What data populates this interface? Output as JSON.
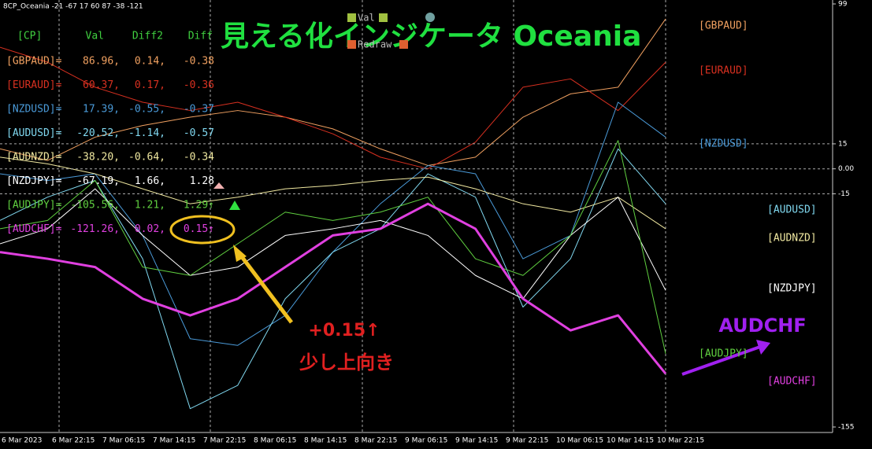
{
  "header": {
    "caption": "8CP_Oceania -21 -67 17 60 87 -38 -121",
    "title": "見える化インジケータ Oceania",
    "button_val": "Val",
    "button_redraw": "Redraw"
  },
  "table": {
    "header": [
      "[CP]",
      "Val",
      "Diff2",
      "Diff"
    ],
    "rows": [
      [
        "[GBPAUD]=",
        "86.96,",
        "0.14,",
        "-0.38"
      ],
      [
        "[EURAUD]=",
        "60.37,",
        "0.17,",
        "-0.36"
      ],
      [
        "[NZDUSD]=",
        "17.39,",
        "-0.55,",
        "-0.37"
      ],
      [
        "[AUDUSD]=",
        "-20.52,",
        "-1.14,",
        "-0.57"
      ],
      [
        "[AUDNZD]=",
        "-38.20,",
        "-0.64,",
        "-0.34"
      ],
      [
        "[NZDJPY]=",
        "-67.19,",
        "1.66,",
        "1.28"
      ],
      [
        "[AUDJPY]=",
        "-105.56,",
        "1.21,",
        "1.29↑"
      ],
      [
        "[AUDCHF]=",
        "-121.26,",
        "0.02,",
        "0.15↑"
      ]
    ]
  },
  "chart": {
    "type": "line",
    "ylim": [
      -155,
      99
    ],
    "yticks": [
      99,
      15,
      {
        "value": 0,
        "label": "0.00"
      },
      -15,
      -155
    ],
    "x_labels": [
      "6 Mar 2023",
      "6 Mar 22:15",
      "7 Mar 06:15",
      "7 Mar 14:15",
      "7 Mar 22:15",
      "8 Mar 06:15",
      "8 Mar 14:15",
      "8 Mar 22:15",
      "9 Mar 06:15",
      "9 Mar 14:15",
      "9 Mar 22:15",
      "10 Mar 06:15",
      "10 Mar 14:15",
      "10 Mar 22:15"
    ],
    "series": [
      {
        "name": "[GBPAUD]",
        "color": "#f0a060",
        "values": [
          12,
          5,
          19,
          26,
          31,
          35,
          31,
          24,
          12,
          2,
          7,
          31,
          45,
          49,
          90
        ]
      },
      {
        "name": "[EURAUD]",
        "color": "#d83020",
        "values": [
          73,
          64,
          49,
          40,
          35,
          40,
          31,
          21,
          7,
          0,
          16,
          49,
          54,
          35,
          64
        ]
      },
      {
        "name": "[NZDUSD]",
        "color": "#4a9ad8",
        "values": [
          -3,
          -7,
          -3,
          -40,
          -102,
          -106,
          -88,
          -50,
          -21,
          2,
          -3,
          -54,
          -40,
          40,
          19
        ]
      },
      {
        "name": "[AUDUSD]",
        "color": "#80d8f0",
        "values": [
          -31,
          -17,
          -7,
          -54,
          -144,
          -130,
          -78,
          -50,
          -36,
          -3,
          -17,
          -83,
          -54,
          12,
          -21
        ]
      },
      {
        "name": "[AUDNZD]",
        "color": "#f0e8a0",
        "values": [
          7,
          3,
          -3,
          -12,
          -21,
          -17,
          -12,
          -10,
          -7,
          -5,
          -12,
          -21,
          -26,
          -17,
          -36
        ]
      },
      {
        "name": "[NZDJPY]",
        "color": "#ffffff",
        "values": [
          -45,
          -36,
          -12,
          -40,
          -64,
          -59,
          -40,
          -36,
          -31,
          -40,
          -64,
          -78,
          -40,
          -17,
          -73
        ]
      },
      {
        "name": "[AUDJPY]",
        "color": "#60d040",
        "values": [
          -36,
          -31,
          -7,
          -59,
          -64,
          -45,
          -26,
          -31,
          -26,
          -17,
          -54,
          -64,
          -40,
          17,
          -111
        ]
      },
      {
        "name": "[AUDCHF]",
        "color": "#e040e0",
        "values": [
          -50,
          -54,
          -59,
          -78,
          -88,
          -78,
          -59,
          -40,
          -36,
          -21,
          -36,
          -78,
          -97,
          -88,
          -123
        ]
      }
    ]
  },
  "annotations": {
    "change": "+0.15↑",
    "note": "少し上向き",
    "pair": "AUDCHF"
  }
}
